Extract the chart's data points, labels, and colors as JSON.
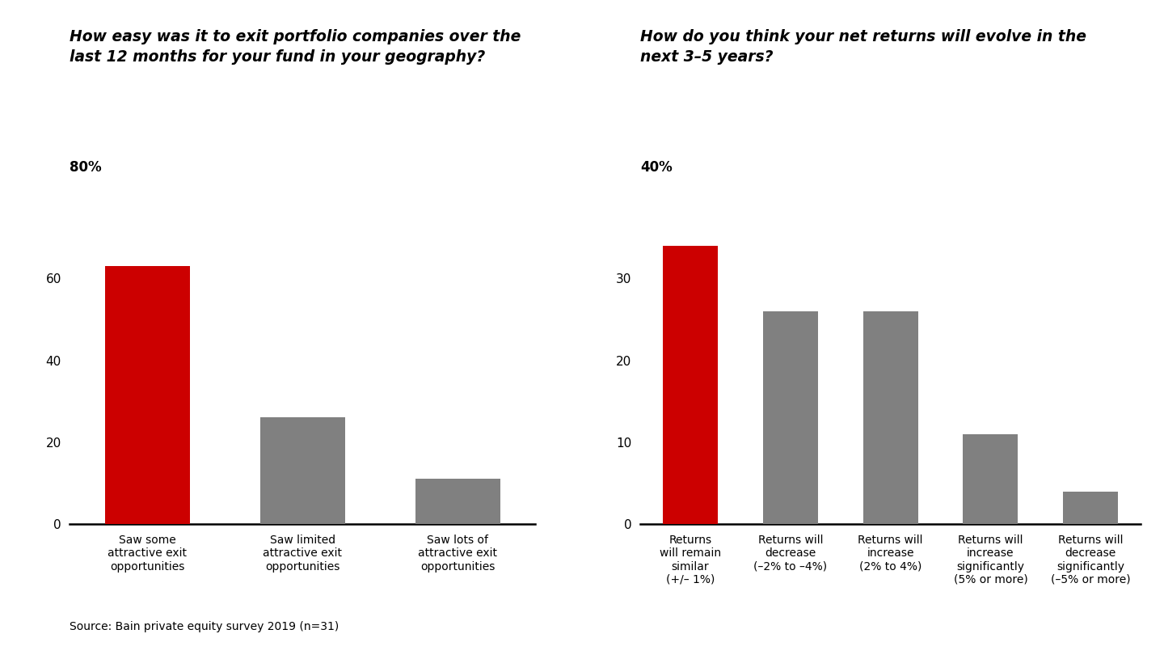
{
  "chart1": {
    "title": "How easy was it to exit portfolio companies over the\nlast 12 months for your fund in your geography?",
    "ylabel_text": "80%",
    "categories": [
      "Saw some\nattractive exit\nopportunities",
      "Saw limited\nattractive exit\nopportunities",
      "Saw lots of\nattractive exit\nopportunities"
    ],
    "values": [
      63,
      26,
      11
    ],
    "colors": [
      "#cc0000",
      "#808080",
      "#808080"
    ],
    "yticks": [
      0,
      20,
      40,
      60
    ],
    "ylim": [
      0,
      80
    ]
  },
  "chart2": {
    "title": "How do you think your net returns will evolve in the\nnext 3–5 years?",
    "ylabel_text": "40%",
    "categories": [
      "Returns\nwill remain\nsimilar\n(+/– 1%)",
      "Returns will\ndecrease\n(–2% to –4%)",
      "Returns will\nincrease\n(2% to 4%)",
      "Returns will\nincrease\nsignificantly\n(5% or more)",
      "Returns will\ndecrease\nsignificantly\n(–5% or more)"
    ],
    "values": [
      34,
      26,
      26,
      11,
      4
    ],
    "colors": [
      "#cc0000",
      "#808080",
      "#808080",
      "#808080",
      "#808080"
    ],
    "yticks": [
      0,
      10,
      20,
      30
    ],
    "ylim": [
      0,
      40
    ]
  },
  "source_text": "Source: Bain private equity survey 2019 (n=31)",
  "bg_color": "#ffffff",
  "title_fontsize": 13.5,
  "tick_fontsize": 11,
  "ylabel_fontsize": 12,
  "xlabel_fontsize": 10,
  "source_fontsize": 10,
  "bar_width": 0.55
}
